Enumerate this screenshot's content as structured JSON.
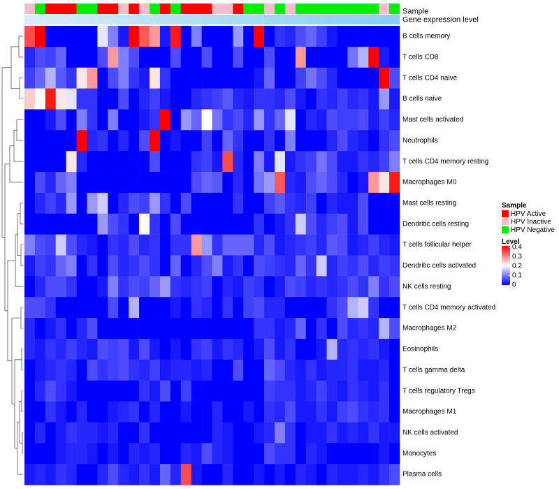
{
  "chart_data": {
    "type": "heatmap",
    "title": "",
    "annotation_tracks": [
      "Sample",
      "Gene expression level"
    ],
    "rows": [
      "B cells memory",
      "T cells CD8",
      "T cells CD4 naive",
      "B cells naive",
      "Mast cells activated",
      "Neutrophils",
      "T cells CD4 memory resting",
      "Macrophages M0",
      "Mast cells resting",
      "Dendritic cells resting",
      "T cells follicular helper",
      "Dendritic cells activated",
      "NK cells resting",
      "T cells CD4 memory activated",
      "Macrophages M2",
      "Eosinophils",
      "T cells gamma delta",
      "T cells regulatory  Tregs",
      "Macrophages M1",
      "NK cells activated",
      "Monocytes",
      "Plasma cells"
    ],
    "sample_groups": [
      "I",
      "N",
      "A",
      "A",
      "A",
      "N",
      "N",
      "A",
      "A",
      "I",
      "A",
      "I",
      "N",
      "A",
      "N",
      "A",
      "A",
      "A",
      "I",
      "I",
      "A",
      "N",
      "N",
      "I",
      "N",
      "I",
      "N",
      "N",
      "N",
      "N",
      "N",
      "N",
      "N",
      "N",
      "I",
      "N"
    ],
    "values": [
      [
        0.34,
        0.42,
        0,
        0,
        0,
        0,
        0,
        0.18,
        0.1,
        0.02,
        0.42,
        0.33,
        0.28,
        0.02,
        0.38,
        0,
        0.1,
        0,
        0,
        0,
        0.12,
        0,
        0.42,
        0,
        0.04,
        0.03,
        0.06,
        0.08,
        0.05,
        0.02,
        0,
        0,
        0,
        0,
        0,
        0
      ],
      [
        0.03,
        0.06,
        0.05,
        0.08,
        0,
        0,
        0,
        0.06,
        0.28,
        0.1,
        0.06,
        0,
        0,
        0,
        0.06,
        0,
        0,
        0.06,
        0,
        0,
        0.06,
        0,
        0,
        0.06,
        0,
        0,
        0.28,
        0,
        0,
        0,
        0,
        0.09,
        0.14,
        0.42,
        0.02,
        0
      ],
      [
        0.05,
        0.08,
        0.14,
        0.07,
        0.04,
        0.22,
        0.28,
        0,
        0.06,
        0.1,
        0.04,
        0.02,
        0.22,
        0.04,
        0,
        0,
        0,
        0,
        0,
        0,
        0,
        0,
        0.02,
        0.08,
        0,
        0,
        0.05,
        0.09,
        0.06,
        0.03,
        0,
        0,
        0,
        0,
        0.42,
        0.06
      ],
      [
        0.24,
        0.2,
        0.38,
        0.22,
        0.18,
        0.04,
        0.04,
        0,
        0,
        0.06,
        0,
        0.03,
        0.05,
        0.02,
        0,
        0,
        0.03,
        0.04,
        0.05,
        0.07,
        0.03,
        0.02,
        0.04,
        0.04,
        0.03,
        0.06,
        0.02,
        0,
        0.04,
        0.03,
        0.05,
        0.03,
        0.04,
        0.02,
        0.12,
        0.02
      ],
      [
        0,
        0,
        0.02,
        0.06,
        0,
        0.1,
        0.04,
        0,
        0.1,
        0,
        0,
        0.02,
        0.04,
        0.44,
        0,
        0.12,
        0.08,
        0.2,
        0.09,
        0.04,
        0.06,
        0.03,
        0.12,
        0.04,
        0.08,
        0.18,
        0,
        0.03,
        0.02,
        0.06,
        0.05,
        0.05,
        0.06,
        0.02,
        0.05,
        0.03
      ],
      [
        0,
        0,
        0,
        0,
        0,
        0.44,
        0.03,
        0.04,
        0,
        0.03,
        0,
        0.06,
        0.44,
        0,
        0.02,
        0,
        0,
        0.05,
        0,
        0.08,
        0.04,
        0,
        0,
        0.04,
        0,
        0.1,
        0,
        0,
        0,
        0.03,
        0.06,
        0.03,
        0.02,
        0,
        0.04,
        0.06
      ],
      [
        0,
        0,
        0,
        0,
        0.22,
        0.03,
        0,
        0,
        0,
        0,
        0,
        0,
        0.06,
        0,
        0,
        0,
        0.04,
        0.05,
        0.02,
        0.34,
        0.03,
        0,
        0.1,
        0.02,
        0.18,
        0.02,
        0.04,
        0.05,
        0.09,
        0.06,
        0.02,
        0.02,
        0.04,
        0.03,
        0.05,
        0.1
      ],
      [
        0,
        0.06,
        0.03,
        0.08,
        0.1,
        0,
        0,
        0,
        0,
        0,
        0,
        0,
        0,
        0,
        0,
        0,
        0.06,
        0.08,
        0.07,
        0,
        0.03,
        0,
        0.09,
        0.12,
        0.33,
        0.03,
        0.02,
        0.06,
        0.08,
        0.06,
        0.03,
        0,
        0.02,
        0.28,
        0.22,
        0.38
      ],
      [
        0,
        0.03,
        0.05,
        0.03,
        0.12,
        0,
        0.12,
        0.16,
        0,
        0.03,
        0.06,
        0.05,
        0.12,
        0.04,
        0,
        0.06,
        0,
        0,
        0,
        0,
        0.04,
        0,
        0,
        0.05,
        0.07,
        0.04,
        0.03,
        0.05,
        0,
        0.03,
        0.02,
        0.02,
        0.06,
        0,
        0,
        0
      ],
      [
        0,
        0,
        0,
        0,
        0,
        0,
        0,
        0.12,
        0.06,
        0.04,
        0,
        0.2,
        0.04,
        0,
        0.06,
        0,
        0,
        0,
        0,
        0,
        0,
        0,
        0.04,
        0,
        0.02,
        0.04,
        0.16,
        0.06,
        0.03,
        0.05,
        0.06,
        0.02,
        0.06,
        0,
        0,
        0
      ],
      [
        0.1,
        0.06,
        0.05,
        0.16,
        0.06,
        0.03,
        0.02,
        0,
        0.04,
        0.03,
        0.06,
        0.03,
        0.04,
        0,
        0.04,
        0.04,
        0.28,
        0.12,
        0.04,
        0.08,
        0.08,
        0.08,
        0.03,
        0.06,
        0.02,
        0.03,
        0.04,
        0.05,
        0.03,
        0.07,
        0.06,
        0.02,
        0.03,
        0.05,
        0.03,
        0.02
      ],
      [
        0.02,
        0.05,
        0.04,
        0.08,
        0.1,
        0,
        0.04,
        0,
        0.06,
        0.03,
        0.04,
        0.06,
        0.04,
        0,
        0.08,
        0,
        0.03,
        0.06,
        0.1,
        0.02,
        0.04,
        0,
        0.06,
        0.05,
        0.04,
        0.03,
        0.08,
        0.04,
        0.16,
        0.03,
        0.05,
        0.04,
        0.06,
        0.03,
        0.05,
        0.04
      ],
      [
        0,
        0.03,
        0.06,
        0.06,
        0.04,
        0,
        0,
        0.02,
        0.1,
        0.04,
        0.06,
        0.05,
        0.08,
        0.12,
        0.04,
        0.03,
        0.04,
        0.05,
        0,
        0.03,
        0.02,
        0.05,
        0.04,
        0,
        0.02,
        0.06,
        0.05,
        0.03,
        0.04,
        0.03,
        0.04,
        0.06,
        0.04,
        0.1,
        0.04,
        0.06
      ],
      [
        0.06,
        0.06,
        0.04,
        0,
        0,
        0,
        0,
        0,
        0.06,
        0,
        0.14,
        0,
        0,
        0,
        0.02,
        0,
        0.04,
        0.03,
        0,
        0.04,
        0,
        0.05,
        0.06,
        0.03,
        0.03,
        0,
        0,
        0,
        0,
        0.04,
        0.06,
        0.14,
        0.16,
        0.04,
        0,
        0
      ],
      [
        0.03,
        0,
        0.02,
        0.04,
        0,
        0.03,
        0.06,
        0,
        0,
        0,
        0,
        0,
        0,
        0,
        0,
        0,
        0,
        0,
        0,
        0,
        0,
        0,
        0.04,
        0.04,
        0.02,
        0.03,
        0.08,
        0,
        0.04,
        0,
        0.06,
        0.03,
        0.04,
        0.03,
        0.14,
        0.06
      ],
      [
        0.03,
        0.02,
        0.04,
        0.03,
        0.05,
        0.03,
        0.02,
        0.06,
        0.05,
        0.06,
        0.02,
        0.06,
        0.02,
        0,
        0.02,
        0,
        0.04,
        0.05,
        0.02,
        0.04,
        0.03,
        0,
        0.02,
        0.06,
        0.02,
        0.04,
        0,
        0,
        0.02,
        0.14,
        0.03,
        0.04,
        0.03,
        0.04,
        0.02,
        0
      ],
      [
        0,
        0.02,
        0.03,
        0.04,
        0.03,
        0,
        0.06,
        0.04,
        0.05,
        0.06,
        0.04,
        0.03,
        0.05,
        0.02,
        0.03,
        0.03,
        0.02,
        0.03,
        0,
        0,
        0.06,
        0,
        0,
        0.08,
        0.06,
        0.03,
        0.02,
        0.04,
        0.02,
        0.03,
        0.03,
        0.04,
        0.02,
        0.02,
        0.03,
        0
      ],
      [
        0,
        0.03,
        0.06,
        0.04,
        0.02,
        0,
        0,
        0,
        0,
        0,
        0,
        0.04,
        0.02,
        0.06,
        0,
        0.05,
        0,
        0,
        0,
        0,
        0,
        0,
        0,
        0.05,
        0.04,
        0.04,
        0.02,
        0.03,
        0.05,
        0.03,
        0.02,
        0.04,
        0.03,
        0.02,
        0.04,
        0
      ],
      [
        0,
        0,
        0.04,
        0.02,
        0,
        0.03,
        0,
        0,
        0.02,
        0.03,
        0.04,
        0,
        0.03,
        0,
        0,
        0.02,
        0,
        0,
        0.03,
        0,
        0,
        0.02,
        0,
        0.04,
        0.03,
        0.06,
        0.02,
        0.02,
        0.04,
        0.02,
        0.05,
        0.06,
        0.04,
        0.03,
        0.04,
        0
      ],
      [
        0,
        0.03,
        0,
        0.02,
        0.04,
        0.03,
        0.03,
        0.02,
        0.03,
        0,
        0,
        0.04,
        0,
        0,
        0,
        0,
        0,
        0,
        0.03,
        0.02,
        0,
        0,
        0.02,
        0.03,
        0.1,
        0.04,
        0,
        0.02,
        0.02,
        0.04,
        0.02,
        0.03,
        0.02,
        0.04,
        0.02,
        0.02
      ],
      [
        0,
        0,
        0,
        0.02,
        0.03,
        0.03,
        0.02,
        0,
        0.02,
        0,
        0.03,
        0.02,
        0.03,
        0,
        0,
        0.03,
        0.02,
        0.06,
        0.03,
        0.02,
        0,
        0,
        0,
        0.06,
        0.04,
        0.04,
        0,
        0.03,
        0.02,
        0,
        0,
        0,
        0,
        0,
        0.02,
        0
      ],
      [
        0.02,
        0.03,
        0.02,
        0.04,
        0.03,
        0,
        0,
        0.03,
        0.06,
        0.03,
        0.02,
        0.04,
        0.02,
        0.08,
        0.03,
        0.34,
        0.02,
        0,
        0,
        0.03,
        0,
        0,
        0.02,
        0,
        0.02,
        0,
        0.03,
        0.02,
        0,
        0.03,
        0.02,
        0.02,
        0.03,
        0.02,
        0.04,
        0.06
      ]
    ],
    "legend": {
      "sample_title": "Sample",
      "sample_entries": [
        {
          "key": "A",
          "label": "HPV Active",
          "color": "#ff0000"
        },
        {
          "key": "I",
          "label": "HPV Inactive",
          "color": "#f4bfcb"
        },
        {
          "key": "N",
          "label": "HPV Negative",
          "color": "#00ee00"
        }
      ],
      "level_title": "Level",
      "level_ticks": [
        "0.4",
        "0.3",
        "0.2",
        "0.1",
        "0"
      ],
      "level_range": [
        0,
        0.4
      ],
      "placement": "right"
    },
    "colors": {
      "low": "#0000ff",
      "mid": "#ffffff",
      "high": "#ff0000",
      "expression_track": "#87cefa",
      "dendrogram": "#555555"
    }
  }
}
